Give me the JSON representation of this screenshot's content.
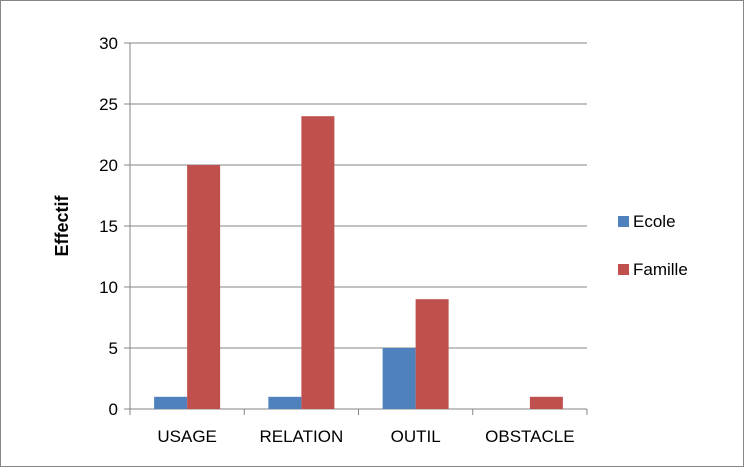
{
  "chart_data": {
    "type": "bar",
    "title": "",
    "xlabel": "",
    "ylabel": "Effectif",
    "categories": [
      "USAGE",
      "RELATION",
      "OUTIL",
      "OBSTACLE"
    ],
    "series": [
      {
        "name": "Ecole",
        "values": [
          1,
          1,
          5,
          0
        ],
        "color": "#4F81BD"
      },
      {
        "name": "Famille",
        "values": [
          20,
          24,
          9,
          1
        ],
        "color": "#C0504D"
      }
    ],
    "ylim": [
      0,
      30
    ],
    "yticks": [
      0,
      5,
      10,
      15,
      20,
      25,
      30
    ],
    "grid": true,
    "legend_position": "right"
  }
}
